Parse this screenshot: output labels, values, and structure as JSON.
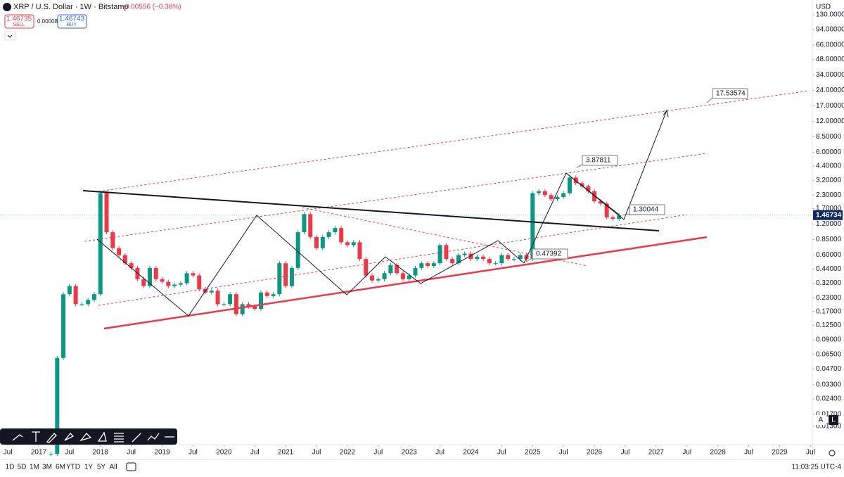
{
  "header": {
    "symbol": "XRP / U.S. Dollar · 1W · Bitstamp",
    "change": "−0.00556 (−0.38%)",
    "sell_price": "1.46735",
    "sell_label": "SELL",
    "spread": "0.00008",
    "buy_price": "1.46743",
    "buy_label": "BUY"
  },
  "chart": {
    "type": "candlestick",
    "currency": "USD",
    "log_scale": true,
    "ylim": [
      0.0089,
      181
    ],
    "xlim": [
      2016.374,
      2029.53
    ],
    "yticks": [
      {
        "value": 130,
        "label": "130.00000"
      },
      {
        "value": 94,
        "label": "94.00000"
      },
      {
        "value": 66,
        "label": "66.00000"
      },
      {
        "value": 48,
        "label": "48.00000"
      },
      {
        "value": 34,
        "label": "34.00000"
      },
      {
        "value": 24,
        "label": "24.00000"
      },
      {
        "value": 17,
        "label": "17.00000"
      },
      {
        "value": 12,
        "label": "12.00000"
      },
      {
        "value": 8.5,
        "label": "8.50000"
      },
      {
        "value": 6,
        "label": "6.00000"
      },
      {
        "value": 4.4,
        "label": "4.40000"
      },
      {
        "value": 3.2,
        "label": "3.20000"
      },
      {
        "value": 2.3,
        "label": "2.30000"
      },
      {
        "value": 1.7,
        "label": "1.70000"
      },
      {
        "value": 1.2,
        "label": "1.20000"
      },
      {
        "value": 0.85,
        "label": "0.85000"
      },
      {
        "value": 0.6,
        "label": "0.60000"
      },
      {
        "value": 0.44,
        "label": "0.44000"
      },
      {
        "value": 0.32,
        "label": "0.32000"
      },
      {
        "value": 0.23,
        "label": "0.23000"
      },
      {
        "value": 0.17,
        "label": "0.17000"
      },
      {
        "value": 0.125,
        "label": "0.12500"
      },
      {
        "value": 0.09,
        "label": "0.09000"
      },
      {
        "value": 0.065,
        "label": "0.06500"
      },
      {
        "value": 0.047,
        "label": "0.04700"
      },
      {
        "value": 0.033,
        "label": "0.03300"
      },
      {
        "value": 0.024,
        "label": "0.02400"
      },
      {
        "value": 0.017,
        "label": "0.01700"
      },
      {
        "value": 0.013,
        "label": "0.01300"
      }
    ],
    "xticks": [
      {
        "value": 2016.5,
        "label": "Jul"
      },
      {
        "value": 2017,
        "label": "2017"
      },
      {
        "value": 2017.5,
        "label": "Jul"
      },
      {
        "value": 2018,
        "label": "2018"
      },
      {
        "value": 2018.5,
        "label": "Jul"
      },
      {
        "value": 2019,
        "label": "2019"
      },
      {
        "value": 2019.5,
        "label": "Jul"
      },
      {
        "value": 2020,
        "label": "2020"
      },
      {
        "value": 2020.5,
        "label": "Jul"
      },
      {
        "value": 2021,
        "label": "2021"
      },
      {
        "value": 2021.5,
        "label": "Jul"
      },
      {
        "value": 2022,
        "label": "2022"
      },
      {
        "value": 2022.5,
        "label": "Jul"
      },
      {
        "value": 2023,
        "label": "2023"
      },
      {
        "value": 2023.5,
        "label": "Jul"
      },
      {
        "value": 2024,
        "label": "2024"
      },
      {
        "value": 2024.5,
        "label": "Jul"
      },
      {
        "value": 2025,
        "label": "2025"
      },
      {
        "value": 2025.5,
        "label": "Jul"
      },
      {
        "value": 2026,
        "label": "2026"
      },
      {
        "value": 2026.5,
        "label": "Jul"
      },
      {
        "value": 2027,
        "label": "2027"
      },
      {
        "value": 2027.5,
        "label": "Jul"
      },
      {
        "value": 2028,
        "label": "2028"
      },
      {
        "value": 2028.5,
        "label": "Jul"
      },
      {
        "value": 2029,
        "label": "2029"
      },
      {
        "value": 2029.5,
        "label": "Jul"
      }
    ],
    "x": [
      2017.2,
      2017.3,
      2017.4,
      2017.5,
      2017.6,
      2017.7,
      2017.8,
      2017.9,
      2018.0,
      2018.1,
      2018.2,
      2018.3,
      2018.4,
      2018.5,
      2018.6,
      2018.7,
      2018.8,
      2018.9,
      2019.0,
      2019.1,
      2019.2,
      2019.3,
      2019.4,
      2019.5,
      2019.6,
      2019.7,
      2019.8,
      2019.9,
      2020.0,
      2020.1,
      2020.2,
      2020.3,
      2020.4,
      2020.5,
      2020.6,
      2020.7,
      2020.8,
      2020.9,
      2021.0,
      2021.1,
      2021.2,
      2021.3,
      2021.4,
      2021.5,
      2021.6,
      2021.7,
      2021.8,
      2021.9,
      2022.0,
      2022.1,
      2022.2,
      2022.3,
      2022.4,
      2022.5,
      2022.6,
      2022.7,
      2022.8,
      2022.9,
      2023.0,
      2023.1,
      2023.2,
      2023.3,
      2023.4,
      2023.5,
      2023.6,
      2023.7,
      2023.8,
      2023.9,
      2024.0,
      2024.1,
      2024.2,
      2024.3,
      2024.4,
      2024.5,
      2024.6,
      2024.7,
      2024.8,
      2024.9,
      2025.0,
      2025.1,
      2025.2,
      2025.3,
      2025.4,
      2025.5,
      2025.6,
      2025.7,
      2025.8,
      2025.9,
      2026.0,
      2026.1,
      2026.2,
      2026.3,
      2026.4
    ],
    "close": [
      0.007,
      0.06,
      0.25,
      0.3,
      0.2,
      0.2,
      0.22,
      0.25,
      2.4,
      1.0,
      0.7,
      0.6,
      0.5,
      0.45,
      0.35,
      0.3,
      0.45,
      0.35,
      0.33,
      0.3,
      0.31,
      0.32,
      0.4,
      0.38,
      0.28,
      0.26,
      0.27,
      0.2,
      0.2,
      0.25,
      0.16,
      0.2,
      0.19,
      0.18,
      0.26,
      0.24,
      0.25,
      0.5,
      0.3,
      0.45,
      1.0,
      1.5,
      0.9,
      0.7,
      0.9,
      1.0,
      1.1,
      0.8,
      0.75,
      0.8,
      0.55,
      0.38,
      0.34,
      0.35,
      0.4,
      0.48,
      0.4,
      0.35,
      0.38,
      0.45,
      0.5,
      0.47,
      0.5,
      0.75,
      0.55,
      0.5,
      0.6,
      0.62,
      0.55,
      0.58,
      0.55,
      0.5,
      0.5,
      0.6,
      0.55,
      0.55,
      0.6,
      0.55,
      2.4,
      2.5,
      2.3,
      2.1,
      2.2,
      2.4,
      3.4,
      3.0,
      2.8,
      2.5,
      2.0,
      1.9,
      1.4,
      1.35,
      1.46
    ],
    "last_price": 1.46734,
    "annotations": [
      "17.53574",
      "3.87811",
      "1.30044",
      "0.47392"
    ],
    "scale_buttons": [
      "A",
      "L"
    ]
  },
  "footer": {
    "ranges": [
      "1D",
      "5D",
      "1M",
      "3M",
      "6M",
      "YTD",
      "1Y",
      "5Y",
      "All"
    ],
    "clock": "11:03:25 UTC-4"
  }
}
